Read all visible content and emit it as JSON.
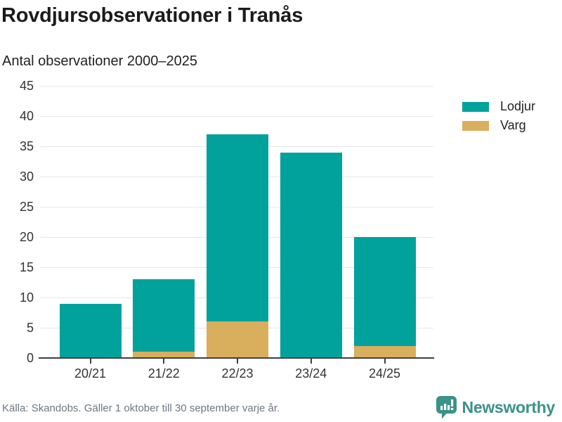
{
  "chart_data": {
    "type": "bar",
    "stacked": true,
    "title": "Rovdjursobservationer i Tranås",
    "subtitle": "Antal observationer 2000–2025",
    "categories": [
      "20/21",
      "21/22",
      "22/23",
      "23/24",
      "24/25"
    ],
    "series": [
      {
        "name": "Lodjur",
        "color": "#00A29B",
        "values": [
          9,
          12,
          31,
          34,
          18
        ]
      },
      {
        "name": "Varg",
        "color": "#D9AE5D",
        "values": [
          0,
          1,
          6,
          0,
          2
        ]
      }
    ],
    "stack_order_bottom_to_top": [
      "Varg",
      "Lodjur"
    ],
    "stack_totals": [
      9,
      13,
      37,
      34,
      20
    ],
    "xlabel": "",
    "ylabel": "",
    "ylim": [
      0,
      45
    ],
    "ytick_step": 5,
    "yticks": [
      0,
      5,
      10,
      15,
      20,
      25,
      30,
      35,
      40,
      45
    ],
    "grid": true,
    "legend_position": "right-top"
  },
  "footer": {
    "source": "Källa: Skandobs. Gäller 1 oktober till 30 september varje år.",
    "brand": "Newsworthy"
  },
  "colors": {
    "bar_teal": "#00A29B",
    "bar_gold": "#D9AE5D",
    "brand_teal": "#3B9288",
    "axis_text": "#333333",
    "grid_line": "#E7E7E7",
    "axis_line": "#3F3F3F",
    "title_text": "#1B1B1B",
    "source_text": "#6E7780"
  }
}
